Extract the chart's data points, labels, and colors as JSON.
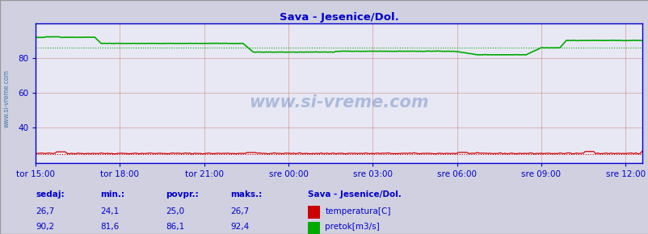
{
  "title": "Sava - Jesenice/Dol.",
  "bg_color": "#d0d0e0",
  "plot_bg_color": "#e8e8f4",
  "title_color": "#0000cc",
  "axis_color": "#0000cc",
  "tick_color": "#0000cc",
  "watermark": "www.si-vreme.com",
  "ylim": [
    20,
    100
  ],
  "yticks": [
    40,
    60,
    80
  ],
  "n_points": 288,
  "temp_color": "#cc0000",
  "flow_color": "#00aa00",
  "temp_avg": 25.0,
  "flow_avg": 86.1,
  "temp_min": 24.1,
  "temp_max": 26.7,
  "flow_min": 81.6,
  "flow_max": 92.4,
  "temp_current": 26.7,
  "flow_current": 90.2,
  "xlabel_ticks": [
    "tor 15:00",
    "tor 18:00",
    "tor 21:00",
    "sre 00:00",
    "sre 03:00",
    "sre 06:00",
    "sre 09:00",
    "sre 12:00"
  ],
  "xlabel_positions_frac": [
    0,
    0.1389,
    0.2778,
    0.4167,
    0.5556,
    0.6944,
    0.8333,
    0.9722
  ],
  "grid_color": "#cc8888",
  "left_label": "www.si-vreme.com",
  "footer_labels": [
    "sedaj:",
    "min.:",
    "povpr.:",
    "maks.:"
  ],
  "footer_temp": [
    "26,7",
    "24,1",
    "25,0",
    "26,7"
  ],
  "footer_flow": [
    "90,2",
    "81,6",
    "86,1",
    "92,4"
  ],
  "footer_station": "Sava - Jesenice/Dol.",
  "legend_temp": "temperatura[C]",
  "legend_flow": "pretok[m3/s]"
}
